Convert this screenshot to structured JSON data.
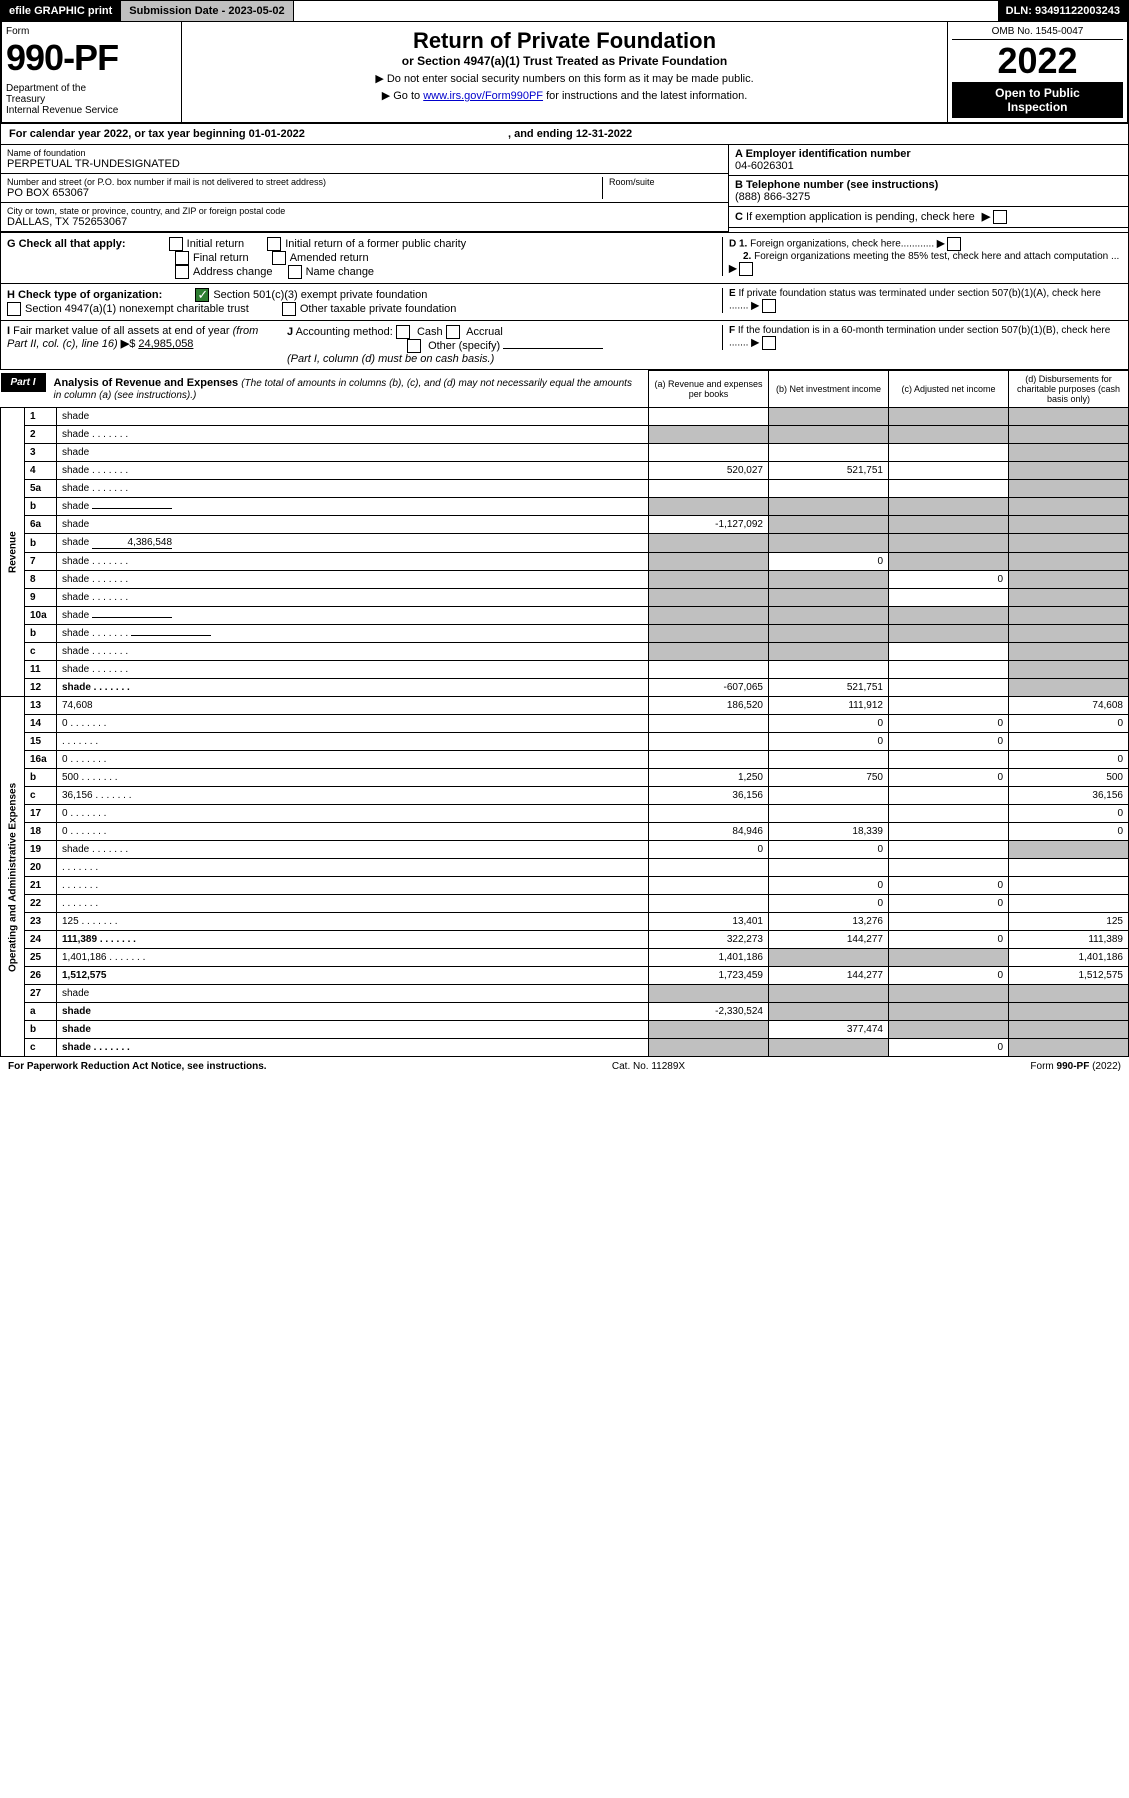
{
  "top": {
    "print": "efile GRAPHIC print",
    "subdate_label": "Submission Date - ",
    "subdate": "2023-05-02",
    "dln_label": "DLN: ",
    "dln": "93491122003243"
  },
  "header": {
    "form_label": "Form",
    "form_num": "990-PF",
    "dept": "Department of the Treasury\nInternal Revenue Service",
    "title": "Return of Private Foundation",
    "subtitle": "or Section 4947(a)(1) Trust Treated as Private Foundation",
    "note1": "▶ Do not enter social security numbers on this form as it may be made public.",
    "note2_pre": "▶ Go to ",
    "note2_link": "www.irs.gov/Form990PF",
    "note2_post": " for instructions and the latest information.",
    "omb": "OMB No. 1545-0047",
    "year": "2022",
    "otp": "Open to Public Inspection"
  },
  "cal": {
    "text": "For calendar year 2022, or tax year beginning 01-01-2022",
    "end": ", and ending 12-31-2022"
  },
  "name": {
    "lbl": "Name of foundation",
    "val": "PERPETUAL TR-UNDESIGNATED"
  },
  "addr": {
    "lbl": "Number and street (or P.O. box number if mail is not delivered to street address)",
    "val": "PO BOX 653067",
    "room_lbl": "Room/suite"
  },
  "city": {
    "lbl": "City or town, state or province, country, and ZIP or foreign postal code",
    "val": "DALLAS, TX  752653067"
  },
  "ein": {
    "lbl": "A Employer identification number",
    "val": "04-6026301"
  },
  "tel": {
    "lbl": "B Telephone number (see instructions)",
    "val": "(888) 866-3275"
  },
  "c": "C If exemption application is pending, check here",
  "d1": "D 1. Foreign organizations, check here............",
  "d2": "2. Foreign organizations meeting the 85% test, check here and attach computation ...",
  "e": "E  If private foundation status was terminated under section 507(b)(1)(A), check here .......",
  "f": "F  If the foundation is in a 60-month termination under section 507(b)(1)(B), check here .......",
  "g": {
    "lbl": "G Check all that apply:",
    "opts": [
      "Initial return",
      "Initial return of a former public charity",
      "Final return",
      "Amended return",
      "Address change",
      "Name change"
    ]
  },
  "h": {
    "lbl": "H Check type of organization:",
    "opt1": "Section 501(c)(3) exempt private foundation",
    "opt2": "Section 4947(a)(1) nonexempt charitable trust",
    "opt3": "Other taxable private foundation"
  },
  "i": {
    "lbl": "I Fair market value of all assets at end of year (from Part II, col. (c), line 16)",
    "val": "24,985,058"
  },
  "j": {
    "lbl": "J Accounting method:",
    "opts": [
      "Cash",
      "Accrual",
      "Other (specify)"
    ],
    "note": "(Part I, column (d) must be on cash basis.)"
  },
  "part1": {
    "tag": "Part I",
    "title": "Analysis of Revenue and Expenses",
    "note": "(The total of amounts in columns (b), (c), and (d) may not necessarily equal the amounts in column (a) (see instructions).)",
    "cols": {
      "a": "(a)  Revenue and expenses per books",
      "b": "(b)  Net investment income",
      "c": "(c)  Adjusted net income",
      "d": "(d)  Disbursements for charitable purposes (cash basis only)"
    }
  },
  "labels": {
    "revenue": "Revenue",
    "opex": "Operating and Administrative Expenses"
  },
  "rows": [
    {
      "n": "1",
      "d": "shade",
      "a": "",
      "b": "shade",
      "c": "shade"
    },
    {
      "n": "2",
      "d": "shade",
      "a": "shade",
      "b": "shade",
      "c": "shade",
      "dots": true
    },
    {
      "n": "3",
      "d": "shade",
      "a": "",
      "b": "",
      "c": ""
    },
    {
      "n": "4",
      "d": "shade",
      "a": "520,027",
      "b": "521,751",
      "c": "",
      "dots": true
    },
    {
      "n": "5a",
      "d": "shade",
      "a": "",
      "b": "",
      "c": "",
      "dots": true
    },
    {
      "n": "b",
      "d": "shade",
      "a": "shade",
      "b": "shade",
      "c": "shade",
      "inline": true
    },
    {
      "n": "6a",
      "d": "shade",
      "a": "-1,127,092",
      "b": "shade",
      "c": "shade"
    },
    {
      "n": "b",
      "d": "shade",
      "a": "shade",
      "b": "shade",
      "c": "shade",
      "inline": true,
      "inlineval": "4,386,548"
    },
    {
      "n": "7",
      "d": "shade",
      "a": "shade",
      "b": "0",
      "c": "shade",
      "dots": true
    },
    {
      "n": "8",
      "d": "shade",
      "a": "shade",
      "b": "shade",
      "c": "0",
      "dots": true
    },
    {
      "n": "9",
      "d": "shade",
      "a": "shade",
      "b": "shade",
      "c": "",
      "dots": true
    },
    {
      "n": "10a",
      "d": "shade",
      "a": "shade",
      "b": "shade",
      "c": "shade",
      "inline": true
    },
    {
      "n": "b",
      "d": "shade",
      "a": "shade",
      "b": "shade",
      "c": "shade",
      "inline": true,
      "dots": true
    },
    {
      "n": "c",
      "d": "shade",
      "a": "shade",
      "b": "shade",
      "c": "",
      "dots": true
    },
    {
      "n": "11",
      "d": "shade",
      "a": "",
      "b": "",
      "c": "",
      "dots": true
    },
    {
      "n": "12",
      "d": "shade",
      "a": "-607,065",
      "b": "521,751",
      "c": "",
      "bold": true,
      "dots": true
    }
  ],
  "rows2": [
    {
      "n": "13",
      "d": "74,608",
      "a": "186,520",
      "b": "111,912",
      "c": ""
    },
    {
      "n": "14",
      "d": "0",
      "a": "",
      "b": "0",
      "c": "0",
      "dots": true
    },
    {
      "n": "15",
      "d": "",
      "a": "",
      "b": "0",
      "c": "0",
      "dots": true
    },
    {
      "n": "16a",
      "d": "0",
      "a": "",
      "b": "",
      "c": "",
      "dots": true
    },
    {
      "n": "b",
      "d": "500",
      "a": "1,250",
      "b": "750",
      "c": "0",
      "dots": true
    },
    {
      "n": "c",
      "d": "36,156",
      "a": "36,156",
      "b": "",
      "c": "",
      "dots": true
    },
    {
      "n": "17",
      "d": "0",
      "a": "",
      "b": "",
      "c": "",
      "dots": true
    },
    {
      "n": "18",
      "d": "0",
      "a": "84,946",
      "b": "18,339",
      "c": "",
      "dots": true
    },
    {
      "n": "19",
      "d": "shade",
      "a": "0",
      "b": "0",
      "c": "",
      "dots": true
    },
    {
      "n": "20",
      "d": "",
      "a": "",
      "b": "",
      "c": "",
      "dots": true
    },
    {
      "n": "21",
      "d": "",
      "a": "",
      "b": "0",
      "c": "0",
      "dots": true
    },
    {
      "n": "22",
      "d": "",
      "a": "",
      "b": "0",
      "c": "0",
      "dots": true
    },
    {
      "n": "23",
      "d": "125",
      "a": "13,401",
      "b": "13,276",
      "c": "",
      "dots": true
    },
    {
      "n": "24",
      "d": "111,389",
      "a": "322,273",
      "b": "144,277",
      "c": "0",
      "bold": true,
      "dots": true
    },
    {
      "n": "25",
      "d": "1,401,186",
      "a": "1,401,186",
      "b": "shade",
      "c": "shade",
      "dots": true
    },
    {
      "n": "26",
      "d": "1,512,575",
      "a": "1,723,459",
      "b": "144,277",
      "c": "0",
      "bold": true
    },
    {
      "n": "27",
      "d": "shade",
      "a": "shade",
      "b": "shade",
      "c": "shade"
    },
    {
      "n": "a",
      "d": "shade",
      "a": "-2,330,524",
      "b": "shade",
      "c": "shade",
      "bold": true
    },
    {
      "n": "b",
      "d": "shade",
      "a": "shade",
      "b": "377,474",
      "c": "shade",
      "bold": true
    },
    {
      "n": "c",
      "d": "shade",
      "a": "shade",
      "b": "shade",
      "c": "0",
      "bold": true,
      "dots": true
    }
  ],
  "footer": {
    "left": "For Paperwork Reduction Act Notice, see instructions.",
    "mid": "Cat. No. 11289X",
    "right": "Form 990-PF (2022)"
  }
}
